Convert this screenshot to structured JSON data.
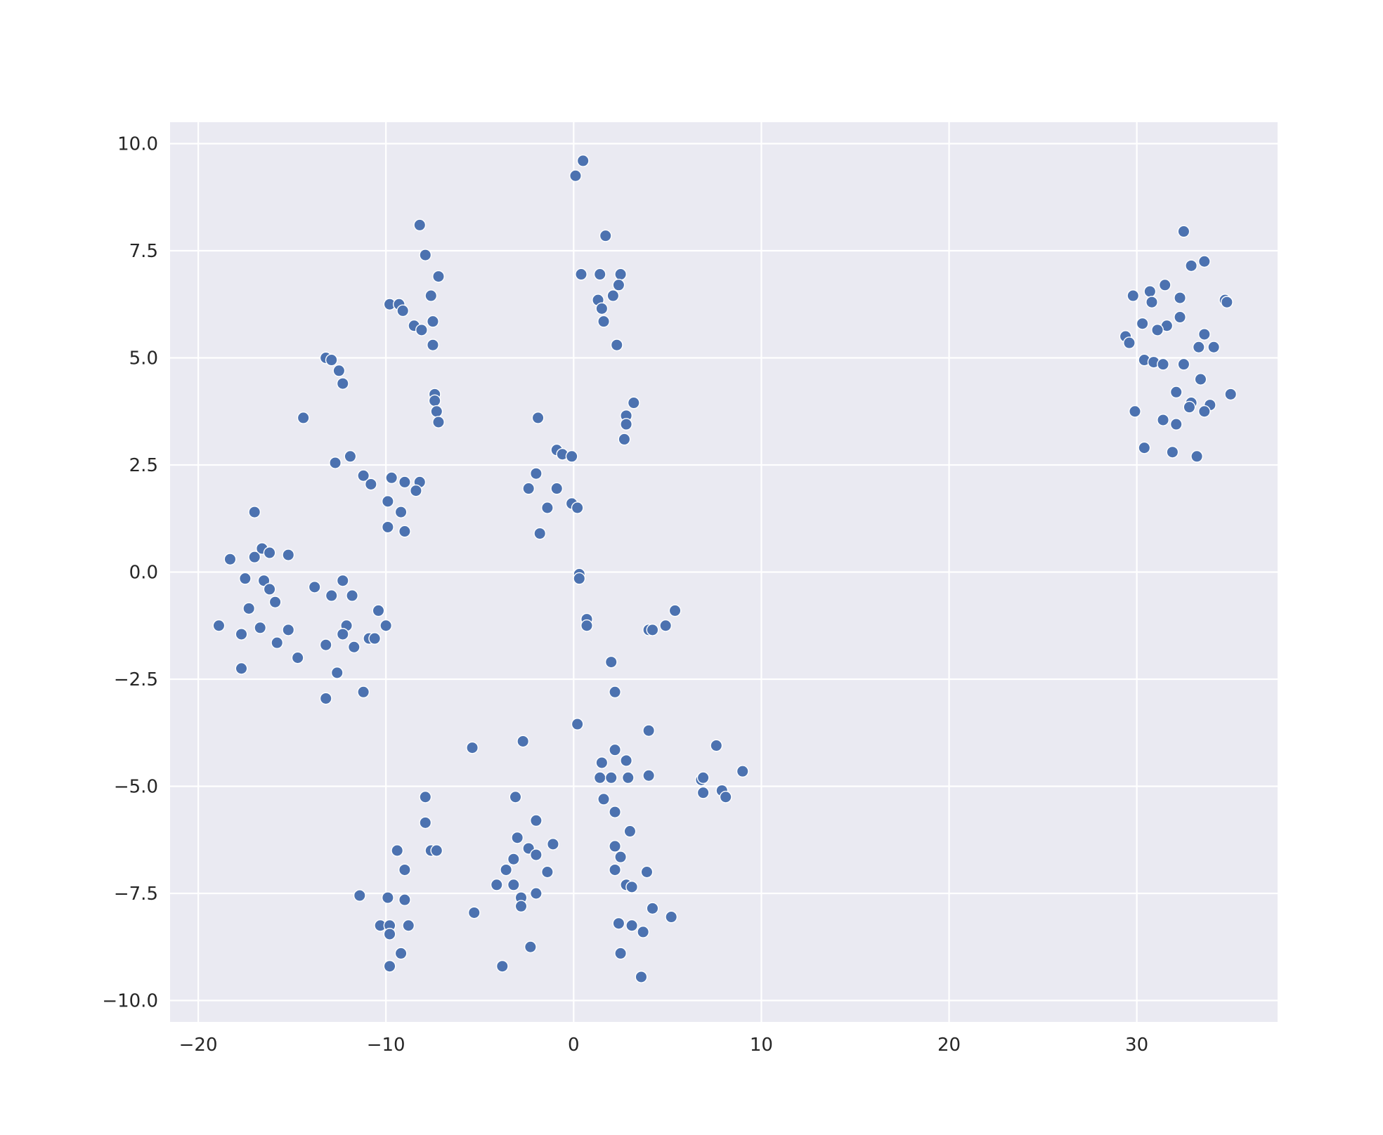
{
  "colors": {
    "background": "#eaeaf2",
    "grid": "#ffffff",
    "point": "#4c72b0",
    "point_edge": "#ffffff",
    "tick_text": "#262626"
  },
  "chart_data": {
    "type": "scatter",
    "title": "",
    "xlabel": "",
    "ylabel": "",
    "xlim": [
      -21.5,
      37.5
    ],
    "ylim": [
      -10.5,
      10.5
    ],
    "grid": true,
    "xticks": [
      -20,
      -10,
      0,
      10,
      20,
      30
    ],
    "yticks": [
      -10.0,
      -7.5,
      -5.0,
      -2.5,
      0.0,
      2.5,
      5.0,
      7.5,
      10.0
    ],
    "xtick_labels": [
      "−20",
      "−10",
      "0",
      "10",
      "20",
      "30"
    ],
    "ytick_labels": [
      "−10.0",
      "−7.5",
      "−5.0",
      "−2.5",
      "0.0",
      "2.5",
      "5.0",
      "7.5",
      "10.0"
    ],
    "points": [
      [
        0.5,
        9.6
      ],
      [
        0.1,
        9.25
      ],
      [
        -8.2,
        8.1
      ],
      [
        -7.9,
        7.4
      ],
      [
        -7.2,
        6.9
      ],
      [
        -7.6,
        6.45
      ],
      [
        -9.8,
        6.25
      ],
      [
        -9.3,
        6.25
      ],
      [
        -9.1,
        6.1
      ],
      [
        -8.5,
        5.75
      ],
      [
        -8.1,
        5.65
      ],
      [
        -7.5,
        5.85
      ],
      [
        -7.5,
        5.3
      ],
      [
        -7.4,
        4.15
      ],
      [
        -7.4,
        4.0
      ],
      [
        -7.3,
        3.75
      ],
      [
        -7.2,
        3.5
      ],
      [
        1.7,
        7.85
      ],
      [
        0.4,
        6.95
      ],
      [
        1.4,
        6.95
      ],
      [
        2.5,
        6.95
      ],
      [
        2.4,
        6.7
      ],
      [
        2.1,
        6.45
      ],
      [
        1.3,
        6.35
      ],
      [
        1.5,
        6.15
      ],
      [
        1.6,
        5.85
      ],
      [
        2.3,
        5.3
      ],
      [
        3.2,
        3.95
      ],
      [
        2.8,
        3.65
      ],
      [
        2.8,
        3.45
      ],
      [
        2.7,
        3.1
      ],
      [
        -13.2,
        5.0
      ],
      [
        -12.9,
        4.95
      ],
      [
        -12.5,
        4.7
      ],
      [
        -12.3,
        4.4
      ],
      [
        -14.4,
        3.6
      ],
      [
        -11.9,
        2.7
      ],
      [
        -12.7,
        2.55
      ],
      [
        -11.2,
        2.25
      ],
      [
        -10.8,
        2.05
      ],
      [
        -9.7,
        2.2
      ],
      [
        -9.0,
        2.1
      ],
      [
        -8.2,
        2.1
      ],
      [
        -8.4,
        1.9
      ],
      [
        -9.9,
        1.65
      ],
      [
        -9.2,
        1.4
      ],
      [
        -9.9,
        1.05
      ],
      [
        -9.0,
        0.95
      ],
      [
        -1.9,
        3.6
      ],
      [
        -0.9,
        2.85
      ],
      [
        -0.6,
        2.75
      ],
      [
        -0.1,
        2.7
      ],
      [
        -2.0,
        2.3
      ],
      [
        -2.4,
        1.95
      ],
      [
        -0.9,
        1.95
      ],
      [
        -1.4,
        1.5
      ],
      [
        -0.1,
        1.6
      ],
      [
        0.2,
        1.5
      ],
      [
        -1.8,
        0.9
      ],
      [
        0.3,
        -0.05
      ],
      [
        0.3,
        -0.15
      ],
      [
        -17.0,
        1.4
      ],
      [
        -18.3,
        0.3
      ],
      [
        -16.6,
        0.55
      ],
      [
        -16.2,
        0.45
      ],
      [
        -17.0,
        0.35
      ],
      [
        -15.2,
        0.4
      ],
      [
        -17.5,
        -0.15
      ],
      [
        -16.5,
        -0.2
      ],
      [
        -16.2,
        -0.4
      ],
      [
        -15.9,
        -0.7
      ],
      [
        -17.3,
        -0.85
      ],
      [
        -16.7,
        -1.3
      ],
      [
        -15.2,
        -1.35
      ],
      [
        -17.7,
        -1.45
      ],
      [
        -15.8,
        -1.65
      ],
      [
        -18.9,
        -1.25
      ],
      [
        -17.7,
        -2.25
      ],
      [
        -14.7,
        -2.0
      ],
      [
        -13.8,
        -0.35
      ],
      [
        -12.3,
        -0.2
      ],
      [
        -12.9,
        -0.55
      ],
      [
        -11.8,
        -0.55
      ],
      [
        -10.4,
        -0.9
      ],
      [
        -12.1,
        -1.25
      ],
      [
        -10.0,
        -1.25
      ],
      [
        -12.3,
        -1.45
      ],
      [
        -10.9,
        -1.55
      ],
      [
        -10.6,
        -1.55
      ],
      [
        -13.2,
        -1.7
      ],
      [
        -11.7,
        -1.75
      ],
      [
        -12.6,
        -2.35
      ],
      [
        -11.2,
        -2.8
      ],
      [
        -13.2,
        -2.95
      ],
      [
        0.7,
        -1.1
      ],
      [
        0.7,
        -1.25
      ],
      [
        4.0,
        -1.35
      ],
      [
        4.2,
        -1.35
      ],
      [
        4.9,
        -1.25
      ],
      [
        5.4,
        -0.9
      ],
      [
        2.0,
        -2.1
      ],
      [
        2.2,
        -2.8
      ],
      [
        0.2,
        -3.55
      ],
      [
        -2.7,
        -3.95
      ],
      [
        -5.4,
        -4.1
      ],
      [
        4.0,
        -3.7
      ],
      [
        7.6,
        -4.05
      ],
      [
        9.0,
        -4.65
      ],
      [
        2.2,
        -4.15
      ],
      [
        1.5,
        -4.45
      ],
      [
        2.8,
        -4.4
      ],
      [
        1.4,
        -4.8
      ],
      [
        2.0,
        -4.8
      ],
      [
        2.9,
        -4.8
      ],
      [
        4.0,
        -4.75
      ],
      [
        6.8,
        -4.85
      ],
      [
        6.9,
        -4.8
      ],
      [
        7.9,
        -5.1
      ],
      [
        6.9,
        -5.15
      ],
      [
        8.1,
        -5.25
      ],
      [
        1.6,
        -5.3
      ],
      [
        2.2,
        -5.6
      ],
      [
        3.0,
        -6.05
      ],
      [
        -7.9,
        -5.25
      ],
      [
        -7.9,
        -5.85
      ],
      [
        -9.4,
        -6.5
      ],
      [
        -7.6,
        -6.5
      ],
      [
        -7.3,
        -6.5
      ],
      [
        -9.0,
        -6.95
      ],
      [
        -3.1,
        -5.25
      ],
      [
        -2.0,
        -5.8
      ],
      [
        -3.0,
        -6.2
      ],
      [
        -2.4,
        -6.45
      ],
      [
        -2.0,
        -6.6
      ],
      [
        -1.1,
        -6.35
      ],
      [
        -3.2,
        -6.7
      ],
      [
        -3.6,
        -6.95
      ],
      [
        -1.4,
        -7.0
      ],
      [
        -4.1,
        -7.3
      ],
      [
        -3.2,
        -7.3
      ],
      [
        -2.0,
        -7.5
      ],
      [
        -2.8,
        -7.6
      ],
      [
        -2.8,
        -7.8
      ],
      [
        -5.3,
        -7.95
      ],
      [
        -2.3,
        -8.75
      ],
      [
        -3.8,
        -9.2
      ],
      [
        2.2,
        -6.4
      ],
      [
        2.5,
        -6.65
      ],
      [
        2.2,
        -6.95
      ],
      [
        3.9,
        -7.0
      ],
      [
        2.8,
        -7.3
      ],
      [
        3.1,
        -7.35
      ],
      [
        4.2,
        -7.85
      ],
      [
        5.2,
        -8.05
      ],
      [
        2.4,
        -8.2
      ],
      [
        3.1,
        -8.25
      ],
      [
        3.7,
        -8.4
      ],
      [
        2.5,
        -8.9
      ],
      [
        3.6,
        -9.45
      ],
      [
        -11.4,
        -7.55
      ],
      [
        -9.9,
        -7.6
      ],
      [
        -9.0,
        -7.65
      ],
      [
        -10.3,
        -8.25
      ],
      [
        -9.8,
        -8.25
      ],
      [
        -8.8,
        -8.25
      ],
      [
        -9.8,
        -8.45
      ],
      [
        -9.2,
        -8.9
      ],
      [
        -9.8,
        -9.2
      ],
      [
        32.5,
        7.95
      ],
      [
        33.6,
        7.25
      ],
      [
        32.9,
        7.15
      ],
      [
        29.8,
        6.45
      ],
      [
        30.7,
        6.55
      ],
      [
        31.5,
        6.7
      ],
      [
        32.3,
        6.4
      ],
      [
        30.8,
        6.3
      ],
      [
        34.7,
        6.35
      ],
      [
        34.8,
        6.3
      ],
      [
        30.3,
        5.8
      ],
      [
        31.6,
        5.75
      ],
      [
        31.1,
        5.65
      ],
      [
        32.3,
        5.95
      ],
      [
        29.4,
        5.5
      ],
      [
        29.6,
        5.35
      ],
      [
        33.6,
        5.55
      ],
      [
        33.3,
        5.25
      ],
      [
        34.1,
        5.25
      ],
      [
        30.4,
        4.95
      ],
      [
        30.9,
        4.9
      ],
      [
        31.4,
        4.85
      ],
      [
        32.5,
        4.85
      ],
      [
        33.4,
        4.5
      ],
      [
        32.1,
        4.2
      ],
      [
        35.0,
        4.15
      ],
      [
        32.9,
        3.95
      ],
      [
        32.8,
        3.85
      ],
      [
        33.9,
        3.9
      ],
      [
        29.9,
        3.75
      ],
      [
        33.6,
        3.75
      ],
      [
        31.4,
        3.55
      ],
      [
        32.1,
        3.45
      ],
      [
        30.4,
        2.9
      ],
      [
        31.9,
        2.8
      ],
      [
        33.2,
        2.7
      ]
    ]
  }
}
